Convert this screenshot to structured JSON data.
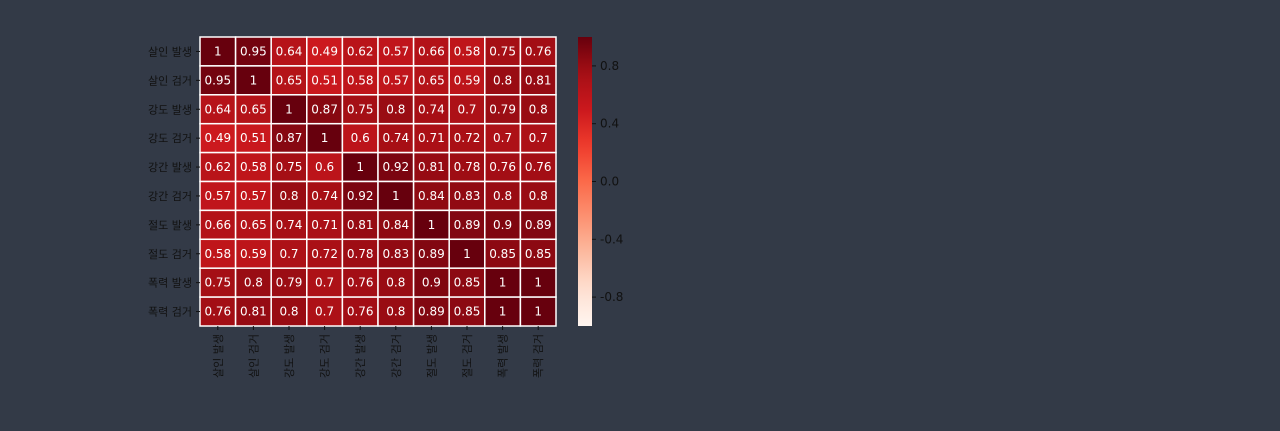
{
  "chart_data": {
    "type": "heatmap",
    "title": "",
    "xlabel": "",
    "ylabel": "",
    "labels": [
      "살인 발생",
      "살인 검거",
      "강도 발생",
      "강도 검거",
      "강간 발생",
      "강간 검거",
      "절도 발생",
      "절도 검거",
      "폭력 발생",
      "폭력 검거"
    ],
    "matrix": [
      [
        1,
        0.95,
        0.64,
        0.49,
        0.62,
        0.57,
        0.66,
        0.58,
        0.75,
        0.76
      ],
      [
        0.95,
        1,
        0.65,
        0.51,
        0.58,
        0.57,
        0.65,
        0.59,
        0.8,
        0.81
      ],
      [
        0.64,
        0.65,
        1,
        0.87,
        0.75,
        0.8,
        0.74,
        0.7,
        0.79,
        0.8
      ],
      [
        0.49,
        0.51,
        0.87,
        1,
        0.6,
        0.74,
        0.71,
        0.72,
        0.7,
        0.7
      ],
      [
        0.62,
        0.58,
        0.75,
        0.6,
        1,
        0.92,
        0.81,
        0.78,
        0.76,
        0.76
      ],
      [
        0.57,
        0.57,
        0.8,
        0.74,
        0.92,
        1,
        0.84,
        0.83,
        0.8,
        0.8
      ],
      [
        0.66,
        0.65,
        0.74,
        0.71,
        0.81,
        0.84,
        1,
        0.89,
        0.9,
        0.89
      ],
      [
        0.58,
        0.59,
        0.7,
        0.72,
        0.78,
        0.83,
        0.89,
        1,
        0.85,
        0.85
      ],
      [
        0.75,
        0.8,
        0.79,
        0.7,
        0.76,
        0.8,
        0.9,
        0.85,
        1,
        1
      ],
      [
        0.76,
        0.81,
        0.8,
        0.7,
        0.76,
        0.8,
        0.89,
        0.85,
        1,
        1
      ]
    ],
    "colorbar": {
      "range": [
        -1,
        1
      ],
      "ticks": [
        0.8,
        0.4,
        0.0,
        -0.4,
        -0.8
      ],
      "tick_labels": [
        "0.8",
        "0.4",
        "0.0",
        "-0.4",
        "-0.8"
      ],
      "colormap": "Reds"
    },
    "grid": true,
    "legend": "none"
  },
  "colors": {
    "background": "#333a47",
    "label_text": "#111111",
    "cell_text": "#ffffff",
    "cell_border": "#ffffff"
  }
}
